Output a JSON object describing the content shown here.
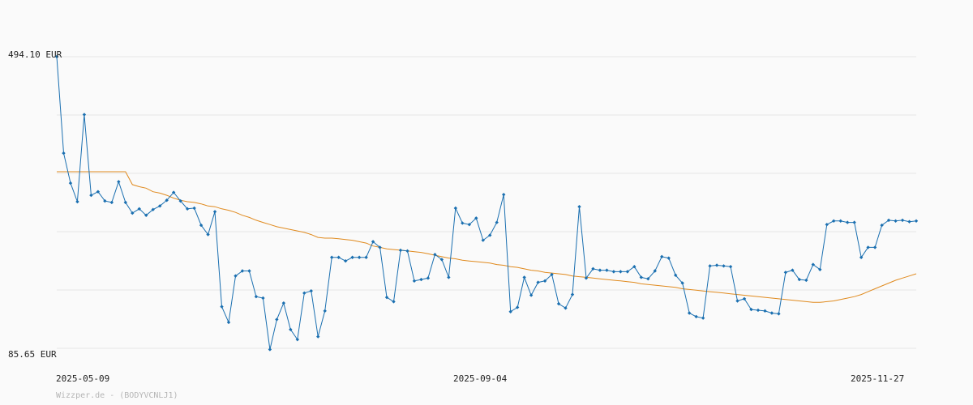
{
  "chart_data": {
    "type": "line",
    "y_axis_labels": [
      "494.10 EUR",
      "85.65 EUR"
    ],
    "x_tick_labels": [
      "2025-05-09",
      "2025-09-04",
      "2025-11-27"
    ],
    "ylim": [
      85.65,
      494.1
    ],
    "grid": "horizontal",
    "credit": "Wizzper.de - (BODYVCNLJ1)",
    "colors": {
      "price": "#1a6fb0",
      "average": "#e08a1e",
      "grid": "#e6e6e6",
      "background": "#fafafa"
    },
    "series": [
      {
        "role": "price",
        "values": [
          494.1,
          359,
          317,
          291,
          413,
          300,
          305,
          292,
          290,
          319,
          290,
          275,
          281,
          272,
          280,
          285,
          293,
          304,
          292,
          281,
          282,
          258,
          245,
          277,
          144,
          122,
          187,
          194,
          194,
          158,
          156,
          84,
          126,
          149,
          112,
          98,
          163,
          166,
          102,
          138,
          213,
          213,
          208,
          213,
          213,
          213,
          235,
          227,
          157,
          151,
          223,
          222,
          180,
          182,
          184,
          217,
          210,
          185,
          282,
          261,
          259,
          268,
          237,
          244,
          262,
          301,
          137,
          143,
          185,
          160,
          178,
          180,
          189,
          148,
          142,
          161,
          284,
          184,
          197,
          195,
          195,
          193,
          193,
          193,
          200,
          185,
          183,
          194,
          214,
          212,
          188,
          177,
          135,
          130,
          128,
          201,
          202,
          201,
          200,
          152,
          155,
          140,
          139,
          138,
          135,
          134,
          192,
          195,
          182,
          181,
          203,
          196,
          259,
          264,
          264,
          262,
          262,
          213,
          227,
          227,
          258,
          265,
          264,
          265,
          263,
          264
        ]
      },
      {
        "role": "moving-average",
        "values": [
          333,
          333,
          333,
          333,
          333,
          333,
          333,
          333,
          333,
          333,
          333,
          315,
          312,
          310,
          305,
          303,
          300,
          296,
          293,
          291,
          290,
          288,
          285,
          284,
          281,
          279,
          276,
          272,
          269,
          265,
          262,
          259,
          256,
          254,
          252,
          250,
          248,
          245,
          241,
          240,
          240,
          239,
          238,
          237,
          235,
          233,
          229,
          227,
          225,
          224,
          223,
          222,
          221,
          220,
          218,
          216,
          214,
          212,
          211,
          209,
          208,
          207,
          206,
          205,
          203,
          202,
          200,
          199,
          197,
          195,
          194,
          192,
          191,
          190,
          189,
          187,
          186,
          185,
          184,
          183,
          182,
          181,
          180,
          179,
          178,
          176,
          175,
          174,
          173,
          172,
          171,
          169,
          168,
          167,
          166,
          165,
          164,
          163,
          162,
          161,
          160,
          159,
          158,
          157,
          156,
          155,
          154,
          153,
          152,
          151,
          150,
          150,
          151,
          152,
          154,
          156,
          158,
          161,
          165,
          169,
          173,
          177,
          181,
          184,
          187,
          190
        ]
      }
    ]
  }
}
